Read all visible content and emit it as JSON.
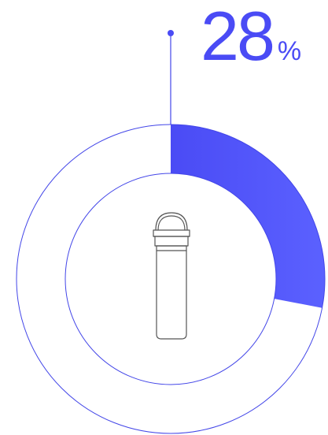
{
  "chart_data": {
    "type": "pie",
    "variant": "donut",
    "values": [
      28,
      72
    ],
    "highlight_value": 28,
    "label": {
      "value": "28",
      "unit": "%"
    },
    "icon": "water-bottle-icon",
    "colors": {
      "accent": "#4A4BF5",
      "accent_light": "#5B61FF",
      "outline": "#4346E8",
      "icon_stroke": "#555555"
    }
  }
}
